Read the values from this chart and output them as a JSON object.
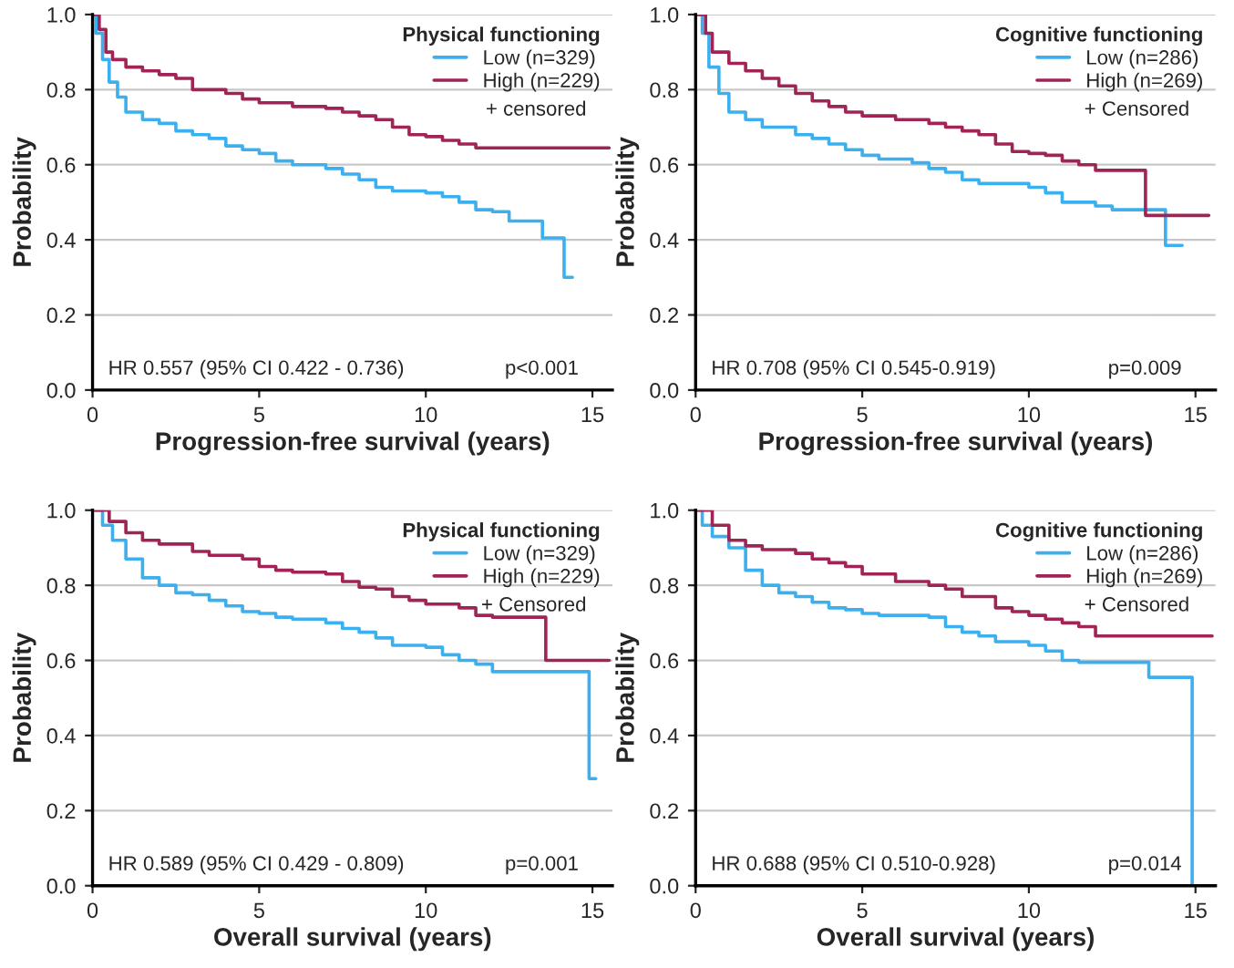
{
  "chart_data": [
    {
      "type": "step",
      "xlabel": "Progression-free survival (years)",
      "ylabel": "Probability",
      "legend_title": "Physical functioning",
      "legend": "top right",
      "grid": "y",
      "xlim": [
        0,
        15.6
      ],
      "xticks": [
        0,
        5,
        10,
        15
      ],
      "ylim": [
        0,
        1
      ],
      "yticks": [
        {
          "value": 0,
          "label": "0.0"
        },
        {
          "value": 0.2,
          "label": "0.2"
        },
        {
          "value": 0.4,
          "label": "0.4"
        },
        {
          "value": 0.6,
          "label": "0.6"
        },
        {
          "value": 0.8,
          "label": "0.8"
        },
        {
          "value": 1,
          "label": "1.0"
        }
      ],
      "annotations": [
        "+ censored",
        "HR 0.557 (95% CI 0.422 - 0.736)",
        "p<0.001"
      ],
      "series": [
        {
          "name": "Low (n=329)",
          "color": "#3cb0ee",
          "x": [
            0,
            0.1,
            0.3,
            0.5,
            0.75,
            1,
            1.5,
            2,
            2.5,
            3,
            3.5,
            4,
            4.5,
            5,
            5.5,
            6,
            7,
            7.5,
            8,
            8.5,
            9,
            10,
            10.5,
            11,
            11.5,
            12,
            12.5,
            13.5,
            14.15,
            14.4
          ],
          "values": [
            1.0,
            0.95,
            0.88,
            0.82,
            0.78,
            0.74,
            0.72,
            0.71,
            0.69,
            0.68,
            0.67,
            0.65,
            0.64,
            0.63,
            0.61,
            0.6,
            0.59,
            0.575,
            0.56,
            0.54,
            0.53,
            0.525,
            0.515,
            0.5,
            0.48,
            0.475,
            0.45,
            0.405,
            0.3,
            0.3
          ]
        },
        {
          "name": "High (n=229)",
          "color": "#a02456",
          "x": [
            0,
            0.2,
            0.4,
            0.6,
            1,
            1.5,
            2,
            2.5,
            3,
            4,
            4.5,
            5,
            6,
            7,
            7.5,
            8,
            8.5,
            9,
            9.5,
            10,
            10.5,
            11,
            11.5,
            15.5
          ],
          "values": [
            1.0,
            0.96,
            0.9,
            0.88,
            0.86,
            0.85,
            0.84,
            0.83,
            0.8,
            0.79,
            0.775,
            0.765,
            0.755,
            0.75,
            0.74,
            0.73,
            0.72,
            0.7,
            0.68,
            0.675,
            0.665,
            0.655,
            0.645,
            0.645
          ]
        }
      ]
    },
    {
      "type": "step",
      "xlabel": "Progression-free survival (years)",
      "ylabel": "Probability",
      "legend_title": "Cognitive functioning",
      "legend": "top right",
      "grid": "y",
      "xlim": [
        0,
        15.6
      ],
      "xticks": [
        0,
        5,
        10,
        15
      ],
      "ylim": [
        0,
        1
      ],
      "yticks": [
        {
          "value": 0,
          "label": "0.0"
        },
        {
          "value": 0.2,
          "label": "0.2"
        },
        {
          "value": 0.4,
          "label": "0.4"
        },
        {
          "value": 0.6,
          "label": "0.6"
        },
        {
          "value": 0.8,
          "label": "0.8"
        },
        {
          "value": 1,
          "label": "1.0"
        }
      ],
      "annotations": [
        "+ Censored",
        "HR 0.708 (95% CI 0.545-0.919)",
        "p=0.009"
      ],
      "series": [
        {
          "name": "Low (n=286)",
          "color": "#3cb0ee",
          "x": [
            0,
            0.2,
            0.4,
            0.7,
            1,
            1.5,
            2,
            3,
            3.5,
            4,
            4.5,
            5,
            5.5,
            6.5,
            7,
            7.5,
            8,
            8.5,
            9.5,
            10,
            10.5,
            11,
            12,
            12.5,
            14.1,
            14.6
          ],
          "values": [
            1.0,
            0.95,
            0.86,
            0.79,
            0.74,
            0.72,
            0.7,
            0.68,
            0.67,
            0.655,
            0.64,
            0.625,
            0.615,
            0.605,
            0.59,
            0.58,
            0.56,
            0.55,
            0.55,
            0.54,
            0.525,
            0.5,
            0.49,
            0.48,
            0.385,
            0.385
          ]
        },
        {
          "name": "High (n=269)",
          "color": "#a02456",
          "x": [
            0,
            0.3,
            0.5,
            1,
            1.5,
            2,
            2.5,
            3,
            3.5,
            4,
            4.5,
            5,
            6,
            7,
            7.5,
            8,
            8.5,
            9,
            9.5,
            10,
            10.5,
            11,
            11.5,
            12,
            13.5,
            15.4
          ],
          "values": [
            1.0,
            0.95,
            0.9,
            0.87,
            0.85,
            0.83,
            0.81,
            0.79,
            0.77,
            0.755,
            0.74,
            0.73,
            0.72,
            0.71,
            0.7,
            0.69,
            0.68,
            0.655,
            0.635,
            0.63,
            0.625,
            0.61,
            0.6,
            0.585,
            0.465,
            0.465
          ]
        }
      ]
    },
    {
      "type": "step",
      "xlabel": "Overall survival (years)",
      "ylabel": "Probability",
      "legend_title": "Physical functioning",
      "legend": "top right",
      "grid": "y",
      "xlim": [
        0,
        15.6
      ],
      "xticks": [
        0,
        5,
        10,
        15
      ],
      "ylim": [
        0,
        1
      ],
      "yticks": [
        {
          "value": 0,
          "label": "0.0"
        },
        {
          "value": 0.2,
          "label": "0.2"
        },
        {
          "value": 0.4,
          "label": "0.4"
        },
        {
          "value": 0.6,
          "label": "0.6"
        },
        {
          "value": 0.8,
          "label": "0.8"
        },
        {
          "value": 1,
          "label": "1.0"
        }
      ],
      "annotations": [
        "+ Censored",
        "HR 0.589 (95% CI 0.429 - 0.809)",
        "p=0.001"
      ],
      "series": [
        {
          "name": "Low (n=329)",
          "color": "#3cb0ee",
          "x": [
            0,
            0.3,
            0.6,
            1,
            1.5,
            2,
            2.5,
            3,
            3.5,
            4,
            4.5,
            5,
            5.5,
            6,
            7,
            7.5,
            8,
            8.5,
            9,
            10,
            10.5,
            11,
            11.5,
            12,
            14.9,
            15.1
          ],
          "values": [
            1.0,
            0.96,
            0.92,
            0.87,
            0.82,
            0.8,
            0.78,
            0.775,
            0.76,
            0.745,
            0.73,
            0.725,
            0.715,
            0.71,
            0.7,
            0.685,
            0.675,
            0.66,
            0.64,
            0.635,
            0.615,
            0.6,
            0.59,
            0.57,
            0.285,
            0.285
          ]
        },
        {
          "name": "High (n=229)",
          "color": "#a02456",
          "x": [
            0,
            0.5,
            1,
            1.5,
            2,
            3,
            3.5,
            4.5,
            5,
            5.5,
            6,
            7,
            7.5,
            8,
            8.5,
            9,
            9.5,
            10,
            11,
            11.5,
            12,
            13.6,
            15.5
          ],
          "values": [
            1.0,
            0.97,
            0.94,
            0.92,
            0.91,
            0.89,
            0.88,
            0.87,
            0.85,
            0.84,
            0.835,
            0.83,
            0.81,
            0.795,
            0.79,
            0.77,
            0.76,
            0.75,
            0.74,
            0.72,
            0.715,
            0.6,
            0.6
          ]
        }
      ]
    },
    {
      "type": "step",
      "xlabel": "Overall survival (years)",
      "ylabel": "Probability",
      "legend_title": "Cognitive functioning",
      "legend": "top right",
      "grid": "y",
      "xlim": [
        0,
        15.6
      ],
      "xticks": [
        0,
        5,
        10,
        15
      ],
      "ylim": [
        0,
        1
      ],
      "yticks": [
        {
          "value": 0,
          "label": "0.0"
        },
        {
          "value": 0.2,
          "label": "0.2"
        },
        {
          "value": 0.4,
          "label": "0.4"
        },
        {
          "value": 0.6,
          "label": "0.6"
        },
        {
          "value": 0.8,
          "label": "0.8"
        },
        {
          "value": 1,
          "label": "1.0"
        }
      ],
      "annotations": [
        "+ Censored",
        "HR 0.688 (95% CI 0.510-0.928)",
        "p=0.014"
      ],
      "series": [
        {
          "name": "Low (n=286)",
          "color": "#3cb0ee",
          "x": [
            0,
            0.2,
            0.5,
            1,
            1.5,
            2,
            2.5,
            3,
            3.5,
            4,
            4.5,
            5,
            5.5,
            7,
            7.5,
            8,
            8.5,
            9,
            10,
            10.5,
            11,
            11.5,
            13.6,
            14.9
          ],
          "values": [
            1.0,
            0.96,
            0.93,
            0.9,
            0.84,
            0.8,
            0.78,
            0.77,
            0.755,
            0.74,
            0.735,
            0.725,
            0.72,
            0.715,
            0.69,
            0.675,
            0.665,
            0.65,
            0.64,
            0.625,
            0.6,
            0.595,
            0.555,
            0.0
          ]
        },
        {
          "name": "High (n=269)",
          "color": "#a02456",
          "x": [
            0,
            0.5,
            1,
            1.5,
            2,
            3,
            3.5,
            4,
            4.5,
            5,
            6,
            7,
            7.5,
            8,
            9,
            9.5,
            10,
            10.5,
            11,
            11.5,
            12,
            15.5
          ],
          "values": [
            1.0,
            0.96,
            0.92,
            0.905,
            0.895,
            0.885,
            0.87,
            0.86,
            0.85,
            0.83,
            0.81,
            0.8,
            0.79,
            0.77,
            0.74,
            0.73,
            0.72,
            0.71,
            0.7,
            0.69,
            0.665,
            0.665
          ]
        }
      ]
    }
  ]
}
